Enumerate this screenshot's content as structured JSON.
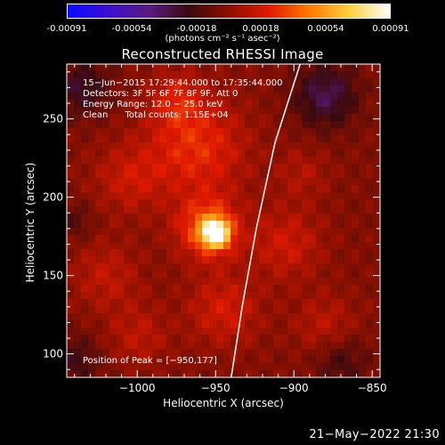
{
  "colorbar": {
    "ticks": [
      "-0.00091",
      "-0.00054",
      "-0.00018",
      "0.00018",
      "0.00054",
      "0.00091"
    ],
    "unit_label": "(photons cm⁻² s⁻¹ asec⁻²)",
    "colors": [
      "#0a0aff",
      "#3a10d0",
      "#5a1a80",
      "#3a0a10",
      "#8a1000",
      "#e01a00",
      "#ff7a00",
      "#ffd040",
      "#ffffff"
    ]
  },
  "chart_data": {
    "type": "heatmap",
    "title": "Reconstructed RHESSI Image",
    "xlabel": "Heliocentric X (arcsec)",
    "ylabel": "Heliocentric Y (arcsec)",
    "xlim": [
      -1045,
      -845
    ],
    "ylim": [
      85,
      285
    ],
    "xticks": [
      -1000,
      -950,
      -900,
      -850
    ],
    "yticks": [
      100,
      150,
      200,
      250
    ],
    "xtick_labels": [
      "−1000",
      "−950",
      "−900",
      "−850"
    ],
    "ytick_labels": [
      "100",
      "150",
      "200",
      "250"
    ],
    "peak": {
      "x": -950,
      "y": 177,
      "label": "Position of Peak = [−950,177]"
    },
    "annotations": [
      "15−Jun−2015 17:29:44.000 to 17:35:44.000",
      "Detectors: 3F 5F 6F 7F 8F 9F, Att 0",
      "Energy Range: 12.0 − 25.0 keV",
      "Clean      Total counts: 1.15E+04"
    ],
    "limb": [
      [
        -940,
        85
      ],
      [
        -933,
        130
      ],
      [
        -924,
        180
      ],
      [
        -912,
        235
      ],
      [
        -896,
        285
      ]
    ],
    "emission_blobs": [
      {
        "x": -950,
        "y": 177,
        "sigma": 6,
        "amp": 1.0
      },
      {
        "x": -955,
        "y": 180,
        "sigma": 14,
        "amp": 0.45
      },
      {
        "x": -962,
        "y": 232,
        "sigma": 22,
        "amp": 0.32
      },
      {
        "x": -975,
        "y": 262,
        "sigma": 12,
        "amp": 0.22
      },
      {
        "x": -1005,
        "y": 212,
        "sigma": 16,
        "amp": 0.2
      },
      {
        "x": -1020,
        "y": 150,
        "sigma": 15,
        "amp": 0.18
      },
      {
        "x": -1000,
        "y": 112,
        "sigma": 14,
        "amp": 0.17
      },
      {
        "x": -945,
        "y": 128,
        "sigma": 16,
        "amp": 0.24
      },
      {
        "x": -905,
        "y": 170,
        "sigma": 16,
        "amp": 0.22
      },
      {
        "x": -880,
        "y": 118,
        "sigma": 14,
        "amp": 0.17
      },
      {
        "x": -895,
        "y": 215,
        "sigma": 12,
        "amp": 0.13
      }
    ],
    "negative_blobs": [
      {
        "x": -880,
        "y": 265,
        "sigma": 14,
        "amp": 0.35
      },
      {
        "x": -1035,
        "y": 270,
        "sigma": 12,
        "amp": 0.28
      },
      {
        "x": -870,
        "y": 95,
        "sigma": 12,
        "amp": 0.2
      },
      {
        "x": -1040,
        "y": 95,
        "sigma": 12,
        "amp": 0.2
      },
      {
        "x": -1040,
        "y": 185,
        "sigma": 8,
        "amp": 0.15
      }
    ]
  },
  "footer": {
    "datetime": "21−May−2022 21:30"
  }
}
